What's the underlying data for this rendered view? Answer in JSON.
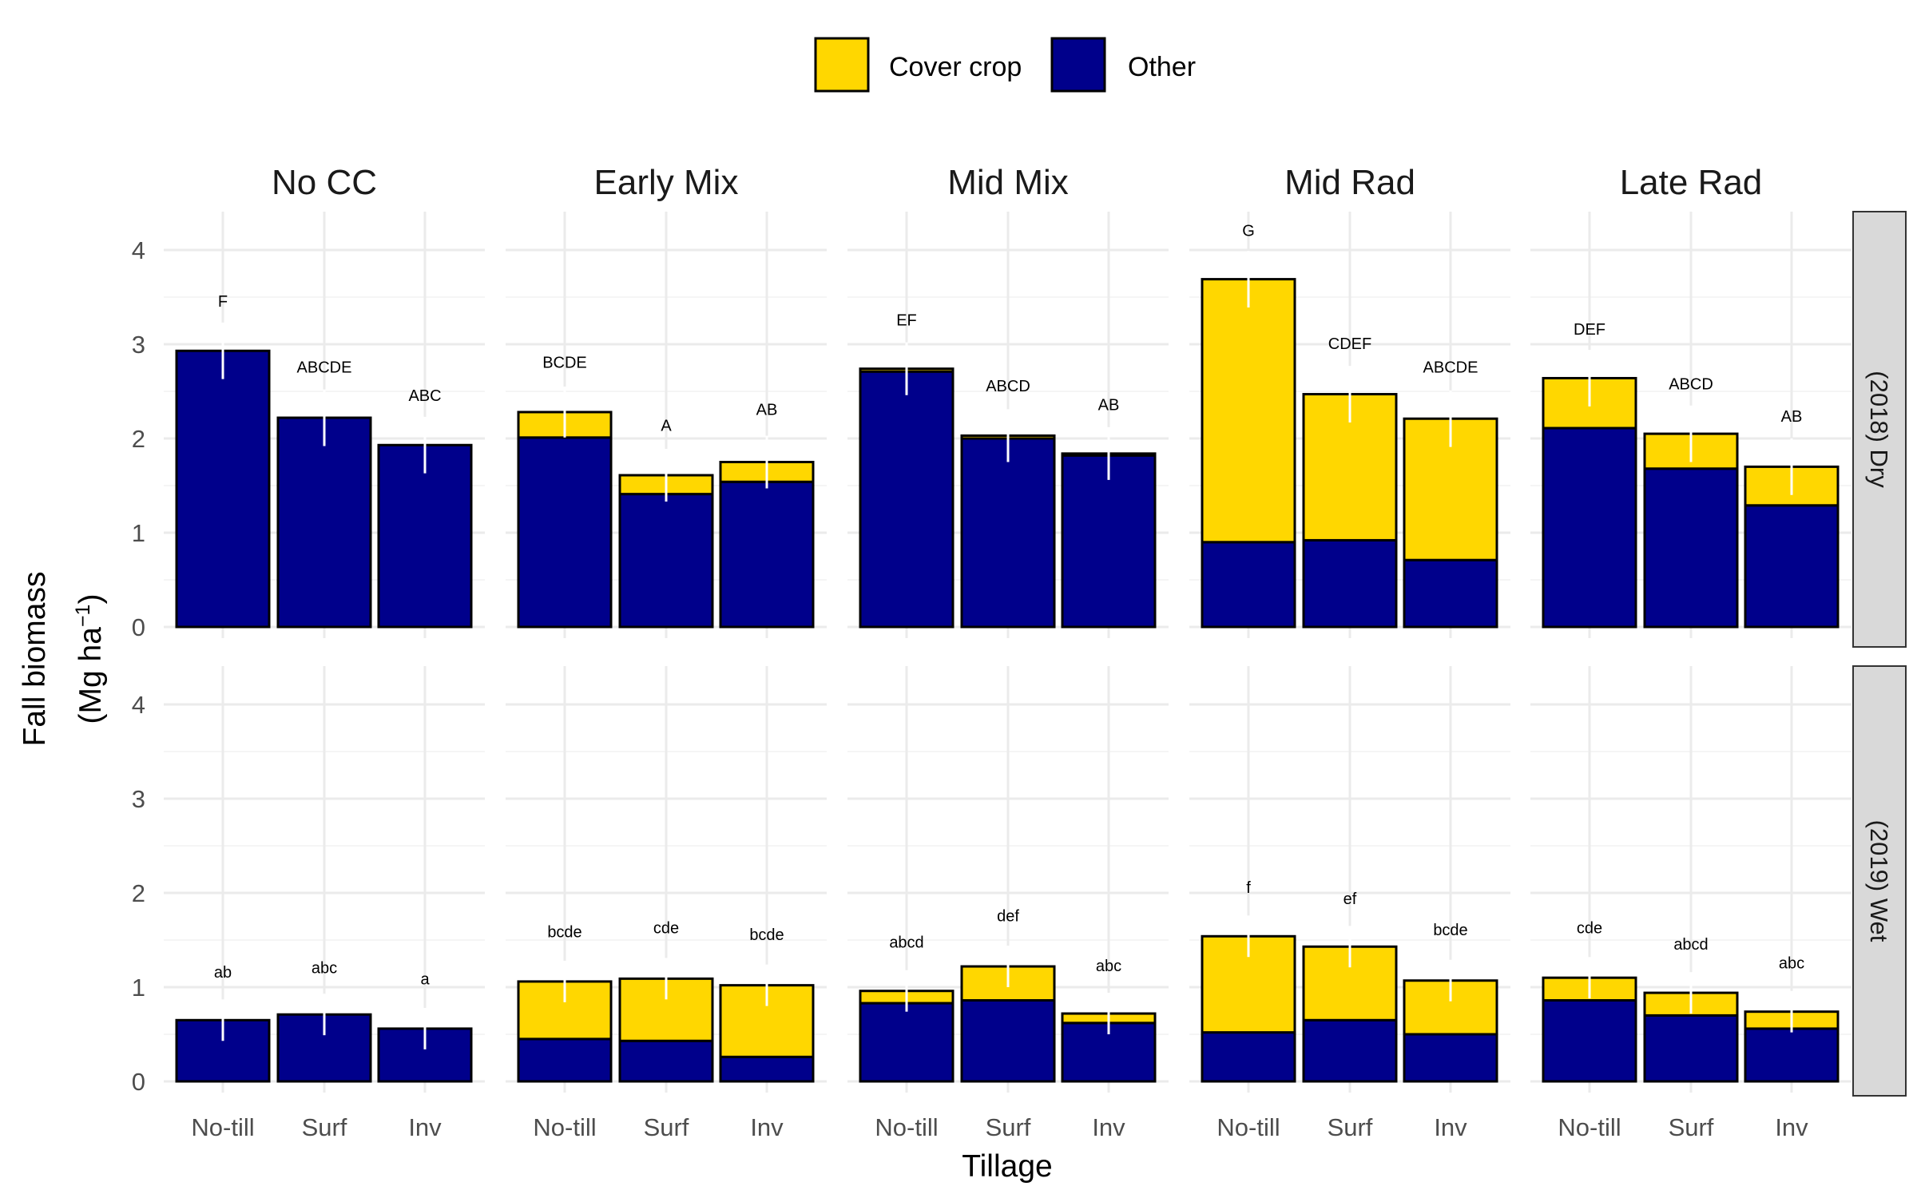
{
  "chart_data": {
    "type": "bar",
    "stacked": true,
    "facet_columns": [
      "No CC",
      "Early Mix",
      "Mid Mix",
      "Mid Rad",
      "Late Rad"
    ],
    "facet_rows": [
      "(2018) Dry",
      "(2019) Wet"
    ],
    "categories": [
      "No-till",
      "Surf",
      "Inv"
    ],
    "xlabel": "Tillage",
    "ylabel_line1": "Fall biomass",
    "ylabel_line2": "(Mg  ha",
    "ylabel_sup": "−1",
    "ylabel_close": ")",
    "ylim": [
      0,
      4.3
    ],
    "yticks": [
      "0",
      "1",
      "2",
      "3",
      "4"
    ],
    "grid": true,
    "legend_position": "top",
    "series": [
      {
        "name": "Cover crop",
        "color": "#FFD700"
      },
      {
        "name": "Other",
        "color": "#00008B"
      }
    ],
    "panels": [
      {
        "row": "(2018) Dry",
        "col": "No CC",
        "bars": [
          {
            "other": 2.93,
            "cover": 0.0,
            "err": 0.3,
            "label": "F",
            "label_y": 3.4
          },
          {
            "other": 2.22,
            "cover": 0.0,
            "err": 0.3,
            "label": "ABCDE",
            "label_y": 2.7
          },
          {
            "other": 1.93,
            "cover": 0.0,
            "err": 0.3,
            "label": "ABC",
            "label_y": 2.4
          }
        ]
      },
      {
        "row": "(2018) Dry",
        "col": "Early Mix",
        "bars": [
          {
            "other": 2.01,
            "cover": 0.27,
            "err": 0.27,
            "label": "BCDE",
            "label_y": 2.75
          },
          {
            "other": 1.41,
            "cover": 0.2,
            "err": 0.28,
            "label": "A",
            "label_y": 2.08
          },
          {
            "other": 1.54,
            "cover": 0.21,
            "err": 0.28,
            "label": "AB",
            "label_y": 2.25
          }
        ]
      },
      {
        "row": "(2018) Dry",
        "col": "Mid Mix",
        "bars": [
          {
            "other": 2.71,
            "cover": 0.03,
            "err": 0.28,
            "label": "EF",
            "label_y": 3.2
          },
          {
            "other": 2.0,
            "cover": 0.03,
            "err": 0.28,
            "label": "ABCD",
            "label_y": 2.5
          },
          {
            "other": 1.82,
            "cover": 0.02,
            "err": 0.28,
            "label": "AB",
            "label_y": 2.3
          }
        ]
      },
      {
        "row": "(2018) Dry",
        "col": "Mid Rad",
        "bars": [
          {
            "other": 0.9,
            "cover": 2.79,
            "err": 0.3,
            "label": "G",
            "label_y": 4.15
          },
          {
            "other": 0.92,
            "cover": 1.55,
            "err": 0.3,
            "label": "CDEF",
            "label_y": 2.95
          },
          {
            "other": 0.71,
            "cover": 1.5,
            "err": 0.3,
            "label": "ABCDE",
            "label_y": 2.7
          }
        ]
      },
      {
        "row": "(2018) Dry",
        "col": "Late Rad",
        "bars": [
          {
            "other": 2.11,
            "cover": 0.53,
            "err": 0.3,
            "label": "DEF",
            "label_y": 3.1
          },
          {
            "other": 1.68,
            "cover": 0.37,
            "err": 0.3,
            "label": "ABCD",
            "label_y": 2.52
          },
          {
            "other": 1.29,
            "cover": 0.41,
            "err": 0.3,
            "label": "AB",
            "label_y": 2.18
          }
        ]
      },
      {
        "row": "(2019) Wet",
        "col": "No CC",
        "bars": [
          {
            "other": 0.65,
            "cover": 0.0,
            "err": 0.22,
            "label": "ab",
            "label_y": 1.1
          },
          {
            "other": 0.71,
            "cover": 0.0,
            "err": 0.22,
            "label": "abc",
            "label_y": 1.15
          },
          {
            "other": 0.56,
            "cover": 0.0,
            "err": 0.22,
            "label": "a",
            "label_y": 1.03
          }
        ]
      },
      {
        "row": "(2019) Wet",
        "col": "Early Mix",
        "bars": [
          {
            "other": 0.45,
            "cover": 0.61,
            "err": 0.22,
            "label": "bcde",
            "label_y": 1.53
          },
          {
            "other": 0.43,
            "cover": 0.66,
            "err": 0.22,
            "label": "cde",
            "label_y": 1.57
          },
          {
            "other": 0.26,
            "cover": 0.76,
            "err": 0.22,
            "label": "bcde",
            "label_y": 1.5
          }
        ]
      },
      {
        "row": "(2019) Wet",
        "col": "Mid Mix",
        "bars": [
          {
            "other": 0.83,
            "cover": 0.13,
            "err": 0.22,
            "label": "abcd",
            "label_y": 1.42
          },
          {
            "other": 0.86,
            "cover": 0.36,
            "err": 0.22,
            "label": "def",
            "label_y": 1.7
          },
          {
            "other": 0.62,
            "cover": 0.1,
            "err": 0.22,
            "label": "abc",
            "label_y": 1.17
          }
        ]
      },
      {
        "row": "(2019) Wet",
        "col": "Mid Rad",
        "bars": [
          {
            "other": 0.52,
            "cover": 1.02,
            "err": 0.22,
            "label": "f",
            "label_y": 2.0
          },
          {
            "other": 0.65,
            "cover": 0.78,
            "err": 0.22,
            "label": "ef",
            "label_y": 1.88
          },
          {
            "other": 0.5,
            "cover": 0.57,
            "err": 0.22,
            "label": "bcde",
            "label_y": 1.55
          }
        ]
      },
      {
        "row": "(2019) Wet",
        "col": "Late Rad",
        "bars": [
          {
            "other": 0.86,
            "cover": 0.24,
            "err": 0.22,
            "label": "cde",
            "label_y": 1.57
          },
          {
            "other": 0.7,
            "cover": 0.24,
            "err": 0.22,
            "label": "abcd",
            "label_y": 1.4
          },
          {
            "other": 0.56,
            "cover": 0.18,
            "err": 0.22,
            "label": "abc",
            "label_y": 1.2
          }
        ]
      }
    ]
  }
}
